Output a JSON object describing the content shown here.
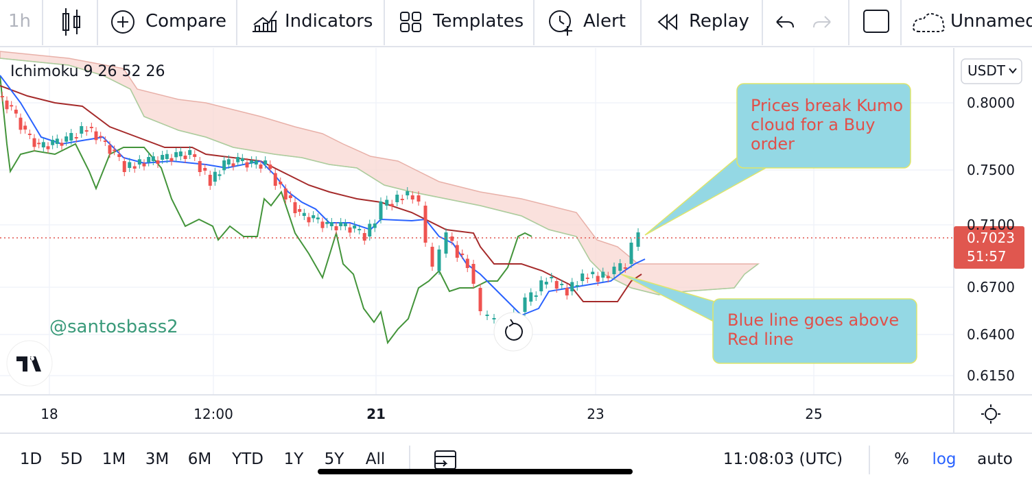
{
  "toolbar": {
    "interval": "1h",
    "items": [
      "Compare",
      "Indicators",
      "Templates",
      "Alert",
      "Replay"
    ],
    "layout_name": "Unnamed"
  },
  "chart": {
    "indicator": "Ichimoku 9 26 52 26",
    "watermark": "@santosbass2",
    "currency": "USDT",
    "price_ticks": [
      "0.8000",
      "0.7500",
      "0.7100",
      "0.6700",
      "0.6400",
      "0.6150"
    ],
    "last_price": "0.7023",
    "countdown": "51:57",
    "time_ticks": [
      "18",
      "12:00",
      "21",
      "23",
      "25"
    ],
    "annotations": [
      "Prices break Kumo cloud for a Buy order",
      "Blue line goes above Red line"
    ]
  },
  "bottom_bar": {
    "ranges": [
      "1D",
      "5D",
      "1M",
      "3M",
      "6M",
      "YTD",
      "1Y",
      "5Y",
      "All"
    ],
    "clock": "11:08:03 (UTC)",
    "percent": "%",
    "log": "log",
    "auto": "auto"
  }
}
